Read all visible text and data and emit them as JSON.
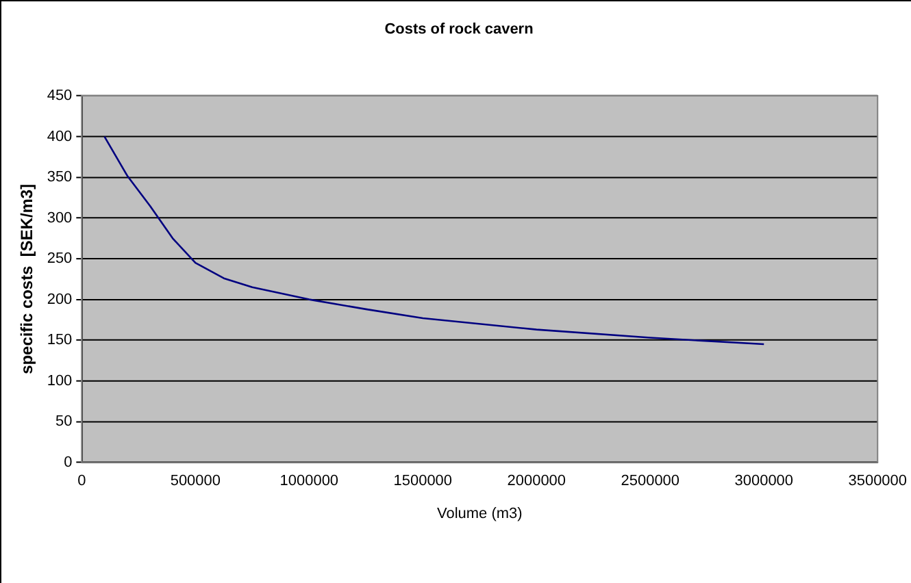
{
  "chart_data": {
    "type": "line",
    "title": "Costs of rock cavern",
    "xlabel": "Volume (m3)",
    "ylabel": "specific costs  [SEK/m3]",
    "x": [
      100000,
      200000,
      300000,
      400000,
      500000,
      625000,
      750000,
      1000000,
      1250000,
      1500000,
      2000000,
      2500000,
      3000000
    ],
    "series": [
      {
        "color": "#000080",
        "values": [
          400,
          352,
          315,
          275,
          245,
          226,
          215,
          200,
          188,
          177,
          163,
          153,
          145
        ]
      }
    ],
    "xlim": [
      0,
      3500000
    ],
    "xticks": [
      0,
      500000,
      1000000,
      1500000,
      2000000,
      2500000,
      3000000,
      3500000
    ],
    "ylim": [
      0,
      450
    ],
    "yticks": [
      0,
      50,
      100,
      150,
      200,
      250,
      300,
      350,
      400,
      450
    ],
    "grid": "y",
    "legend": false,
    "marker": "none",
    "line_style": "solid"
  }
}
